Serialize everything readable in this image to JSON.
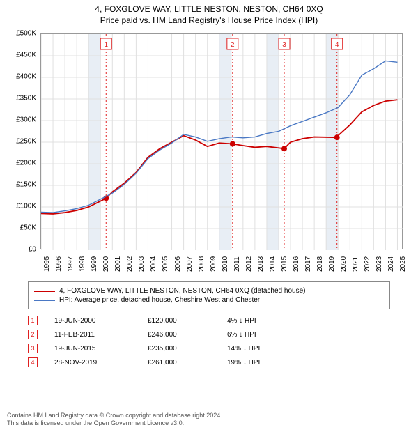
{
  "title": "4, FOXGLOVE WAY, LITTLE NESTON, NESTON, CH64 0XQ",
  "subtitle": "Price paid vs. HM Land Registry's House Price Index (HPI)",
  "chart": {
    "type": "line",
    "background_color": "#ffffff",
    "plot_border_color": "#999999",
    "grid_color": "#e0e0e0",
    "x_years": [
      1995,
      1996,
      1997,
      1998,
      1999,
      2000,
      2001,
      2002,
      2003,
      2004,
      2005,
      2006,
      2007,
      2008,
      2009,
      2010,
      2011,
      2012,
      2013,
      2014,
      2015,
      2016,
      2017,
      2018,
      2019,
      2020,
      2021,
      2022,
      2023,
      2024,
      2025
    ],
    "xlim": [
      1995,
      2025.5
    ],
    "ylim": [
      0,
      500000
    ],
    "ytick_step": 50000,
    "ytick_labels": [
      "£0",
      "£50K",
      "£100K",
      "£150K",
      "£200K",
      "£250K",
      "£300K",
      "£350K",
      "£400K",
      "£450K",
      "£500K"
    ],
    "shaded_color": "#e8eef5",
    "shaded_year_pairs": [
      [
        1999,
        2000
      ],
      [
        2010,
        2011
      ],
      [
        2014,
        2015
      ],
      [
        2019,
        2020
      ]
    ],
    "marker_line_color": "#e02020",
    "marker_box_border": "#e02020",
    "marker_box_bg": "#ffffff",
    "marker_font_color": "#e02020",
    "markers": [
      {
        "label": "1",
        "x_year": 2000.47
      },
      {
        "label": "2",
        "x_year": 2011.12
      },
      {
        "label": "3",
        "x_year": 2015.47
      },
      {
        "label": "4",
        "x_year": 2019.91
      }
    ],
    "series": [
      {
        "name": "property",
        "color": "#cc0000",
        "width": 1.8,
        "points": [
          [
            1995,
            85000
          ],
          [
            1996,
            84000
          ],
          [
            1997,
            87000
          ],
          [
            1998,
            92000
          ],
          [
            1999,
            100000
          ],
          [
            2000.47,
            120000
          ],
          [
            2001,
            135000
          ],
          [
            2002,
            155000
          ],
          [
            2003,
            180000
          ],
          [
            2004,
            215000
          ],
          [
            2005,
            235000
          ],
          [
            2006,
            250000
          ],
          [
            2007,
            265000
          ],
          [
            2008,
            255000
          ],
          [
            2009,
            240000
          ],
          [
            2010,
            248000
          ],
          [
            2011.12,
            246000
          ],
          [
            2012,
            242000
          ],
          [
            2013,
            238000
          ],
          [
            2014,
            240000
          ],
          [
            2015.47,
            235000
          ],
          [
            2016,
            250000
          ],
          [
            2017,
            258000
          ],
          [
            2018,
            262000
          ],
          [
            2019.91,
            261000
          ],
          [
            2020,
            265000
          ],
          [
            2021,
            290000
          ],
          [
            2022,
            320000
          ],
          [
            2023,
            335000
          ],
          [
            2024,
            345000
          ],
          [
            2025,
            348000
          ]
        ],
        "dots_color": "#cc0000",
        "dots": [
          [
            2000.47,
            120000
          ],
          [
            2011.12,
            246000
          ],
          [
            2015.47,
            235000
          ],
          [
            2019.91,
            261000
          ]
        ]
      },
      {
        "name": "hpi",
        "color": "#4a78c4",
        "width": 1.4,
        "points": [
          [
            1995,
            88000
          ],
          [
            1996,
            87000
          ],
          [
            1997,
            91000
          ],
          [
            1998,
            96000
          ],
          [
            1999,
            104000
          ],
          [
            2000,
            118000
          ],
          [
            2001,
            132000
          ],
          [
            2002,
            152000
          ],
          [
            2003,
            178000
          ],
          [
            2004,
            212000
          ],
          [
            2005,
            232000
          ],
          [
            2006,
            248000
          ],
          [
            2007,
            268000
          ],
          [
            2008,
            262000
          ],
          [
            2009,
            252000
          ],
          [
            2010,
            258000
          ],
          [
            2011,
            262000
          ],
          [
            2012,
            260000
          ],
          [
            2013,
            262000
          ],
          [
            2014,
            270000
          ],
          [
            2015,
            275000
          ],
          [
            2016,
            288000
          ],
          [
            2017,
            298000
          ],
          [
            2018,
            308000
          ],
          [
            2019,
            318000
          ],
          [
            2020,
            330000
          ],
          [
            2021,
            360000
          ],
          [
            2022,
            405000
          ],
          [
            2023,
            420000
          ],
          [
            2024,
            438000
          ],
          [
            2025,
            435000
          ]
        ]
      }
    ]
  },
  "legend": {
    "items": [
      {
        "color": "#cc0000",
        "label": "4, FOXGLOVE WAY, LITTLE NESTON, NESTON, CH64 0XQ (detached house)"
      },
      {
        "color": "#4a78c4",
        "label": "HPI: Average price, detached house, Cheshire West and Chester"
      }
    ]
  },
  "table": {
    "rows": [
      {
        "marker": "1",
        "date": "19-JUN-2000",
        "price": "£120,000",
        "pct": "4% ↓ HPI"
      },
      {
        "marker": "2",
        "date": "11-FEB-2011",
        "price": "£246,000",
        "pct": "6% ↓ HPI"
      },
      {
        "marker": "3",
        "date": "19-JUN-2015",
        "price": "£235,000",
        "pct": "14% ↓ HPI"
      },
      {
        "marker": "4",
        "date": "28-NOV-2019",
        "price": "£261,000",
        "pct": "19% ↓ HPI"
      }
    ]
  },
  "footer_line1": "Contains HM Land Registry data © Crown copyright and database right 2024.",
  "footer_line2": "This data is licensed under the Open Government Licence v3.0."
}
